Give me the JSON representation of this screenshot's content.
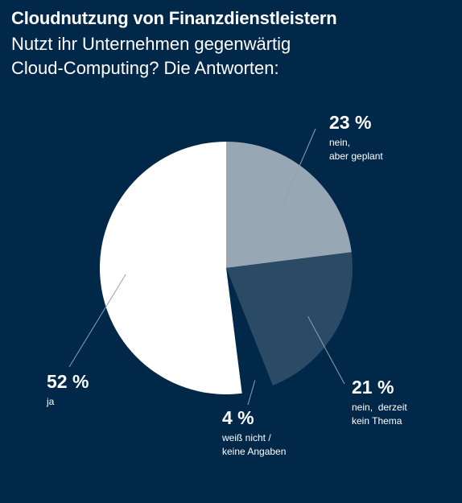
{
  "chart_data": {
    "type": "pie",
    "title": "Cloudnutzung von Finanzdienstleistern",
    "subtitle": [
      "Nutzt ihr Unternehmen gegenwärtig",
      "Cloud-Computing? Die Antworten:"
    ],
    "slices": [
      {
        "value": 23,
        "value_label": "23 %",
        "label_lines": [
          "nein,",
          "aber geplant"
        ],
        "color": "#97a7b3"
      },
      {
        "value": 21,
        "value_label": "21 %",
        "label_lines": [
          "nein,  derzeit",
          "kein Thema"
        ],
        "color": "#2a4a65"
      },
      {
        "value": 4,
        "value_label": "4 %",
        "label_lines": [
          "weiß nicht /",
          "keine Angaben"
        ],
        "color": "#012849"
      },
      {
        "value": 52,
        "value_label": "52 %",
        "label_lines": [
          "ja"
        ],
        "color": "#ffffff"
      }
    ],
    "start": "12 o'clock",
    "direction": "clockwise"
  },
  "colors": {
    "background": "#012849",
    "leader_line": "#8fa2b2"
  }
}
